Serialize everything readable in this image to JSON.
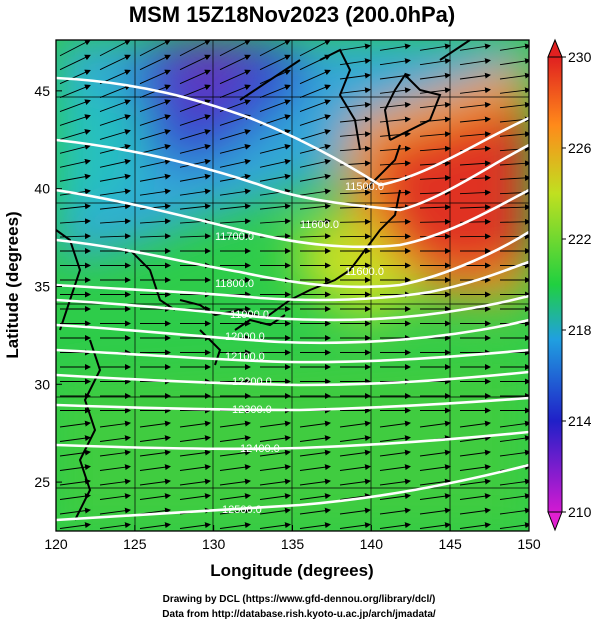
{
  "title": "MSM 15Z18Nov2023 (200.0hPa)",
  "x_label": "Longitude (degrees)",
  "y_label": "Latitude  (degrees)",
  "x_ticks": [
    "120",
    "125",
    "130",
    "135",
    "140",
    "145",
    "150"
  ],
  "y_ticks": [
    "25",
    "30",
    "35",
    "40",
    "45"
  ],
  "colorbar": {
    "labels": [
      "210",
      "214",
      "218",
      "222",
      "226",
      "230"
    ],
    "colors": [
      "#d21ad2",
      "#2020c8",
      "#20a0e0",
      "#20d040",
      "#c0e020",
      "#ff8a1a",
      "#e02020"
    ]
  },
  "contour_labels": [
    "11500.0",
    "11600.0",
    "11600.0",
    "11700.0",
    "11800.0",
    "11900.0",
    "12000.0",
    "12100.0",
    "12200.0",
    "12300.0",
    "12400.0",
    "12500.0"
  ],
  "credits": [
    "Drawing by DCL (https://www.gfd-dennou.org/library/dcl/)",
    "Data from http://database.rish.kyoto-u.ac.jp/arch/jmadata/"
  ],
  "map_data": {
    "lon_range": [
      120,
      150
    ],
    "lat_range": [
      22.5,
      47.6
    ],
    "contour_interval": 100,
    "wind_dir": "westerly"
  }
}
